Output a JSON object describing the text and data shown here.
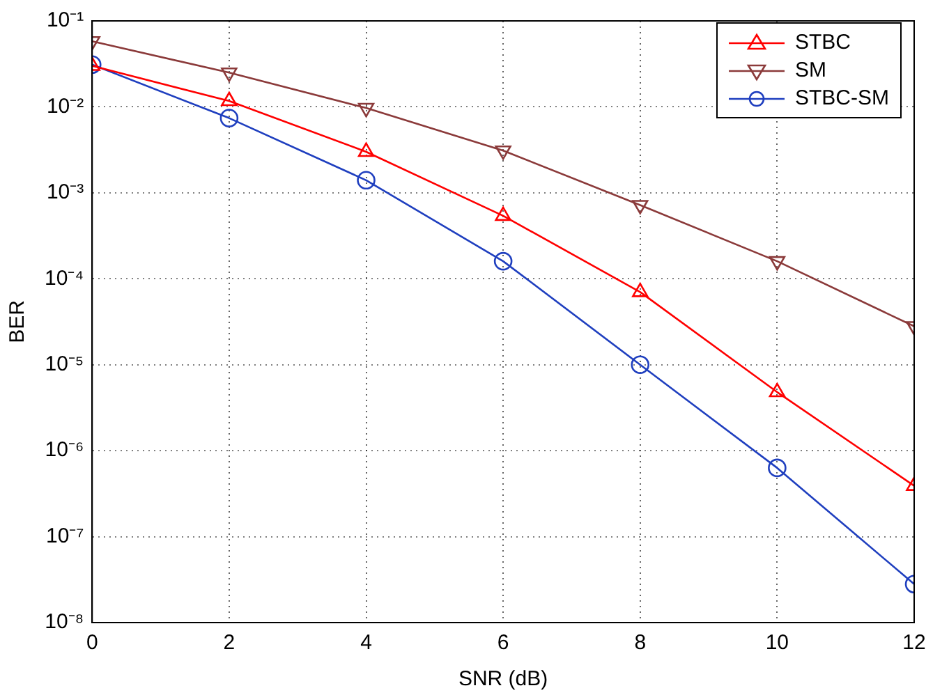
{
  "chart_data": {
    "type": "line",
    "xlabel": "SNR (dB)",
    "ylabel": "BER",
    "log": "y",
    "grid": true,
    "legend": "top right",
    "line_style": "solid",
    "x": [
      0,
      2,
      4,
      6,
      8,
      10,
      12
    ],
    "xlim": [
      0,
      12
    ],
    "xticks": [
      0,
      2,
      4,
      6,
      8,
      10,
      12
    ],
    "ylim": [
      1e-08,
      0.1
    ],
    "yticks": [
      {
        "value": 1e-08,
        "label": "10⁻⁸"
      },
      {
        "value": 1e-07,
        "label": "10⁻⁷"
      },
      {
        "value": 1e-06,
        "label": "10⁻⁶"
      },
      {
        "value": 1e-05,
        "label": "10⁻⁵"
      },
      {
        "value": 0.0001,
        "label": "10⁻⁴"
      },
      {
        "value": 0.001,
        "label": "10⁻³"
      },
      {
        "value": 0.01,
        "label": "10⁻²"
      },
      {
        "value": 0.1,
        "label": "10⁻¹"
      }
    ],
    "series": [
      {
        "name": "STBC",
        "color": "#ff0000",
        "marker": "triangle",
        "values": [
          0.03,
          0.0117,
          0.003,
          0.00054,
          7e-05,
          4.8e-06,
          3.9e-07
        ]
      },
      {
        "name": "SM",
        "color": "#8b3a3a",
        "marker": "triangle-down",
        "values": [
          0.058,
          0.025,
          0.0097,
          0.0031,
          0.00072,
          0.00016,
          2.8e-05
        ]
      },
      {
        "name": "STBC-SM",
        "color": "#1f3fbf",
        "marker": "circle",
        "values": [
          0.031,
          0.0074,
          0.0014,
          0.00016,
          1e-05,
          6.3e-07,
          2.8e-08
        ]
      }
    ]
  }
}
